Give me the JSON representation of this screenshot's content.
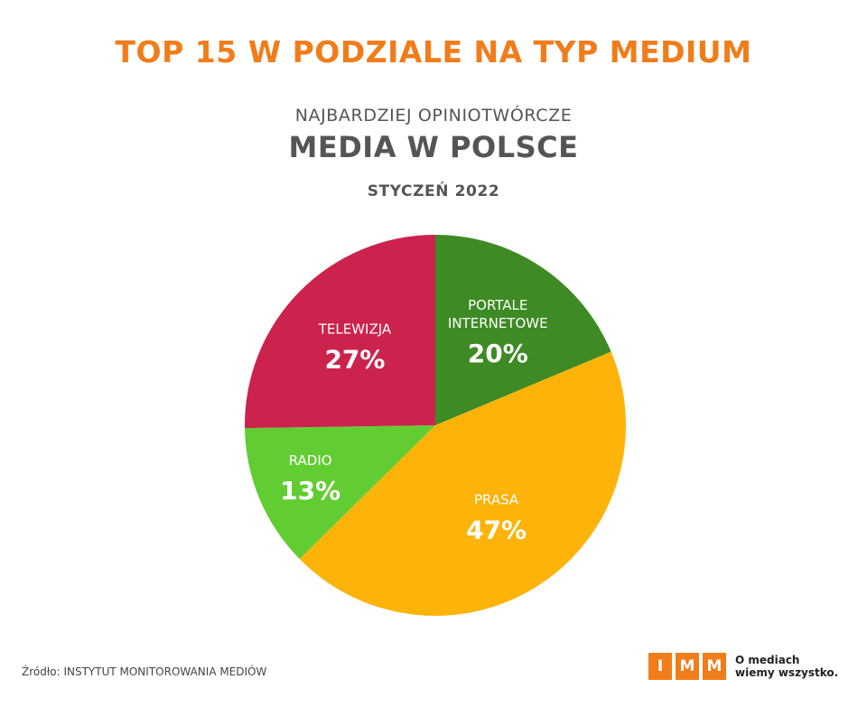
{
  "header": {
    "title": "TOP 15 W PODZIALE NA TYP MEDIUM",
    "kicker": "NAJBARDZIEJ OPINIOTWÓRCZE",
    "headline": "MEDIA W POLSCE",
    "date": "STYCZEŃ 2022"
  },
  "chart_data": {
    "type": "pie",
    "slices": [
      {
        "label": "PORTALE INTERNETOWE",
        "label_lines": [
          "PORTALE",
          "INTERNETOWE"
        ],
        "value": 20,
        "display": "20%",
        "color": "#3e8a24"
      },
      {
        "label": "PRASA",
        "label_lines": [
          "PRASA"
        ],
        "value": 47,
        "display": "47%",
        "color": "#fdb309"
      },
      {
        "label": "RADIO",
        "label_lines": [
          "RADIO"
        ],
        "value": 13,
        "display": "13%",
        "color": "#62cd33"
      },
      {
        "label": "TELEWIZJA",
        "label_lines": [
          "TELEWIZJA"
        ],
        "value": 27,
        "display": "27%",
        "color": "#cb234d"
      }
    ]
  },
  "footer": {
    "source": "Źródło: INSTYTUT MONITOROWANIA MEDIÓW",
    "logo_letters": [
      "I",
      "M",
      "M"
    ],
    "tagline_line1": "O mediach",
    "tagline_line2": "wiemy wszystko."
  },
  "colors": {
    "accent": "#f07d1a",
    "text": "#555555"
  }
}
